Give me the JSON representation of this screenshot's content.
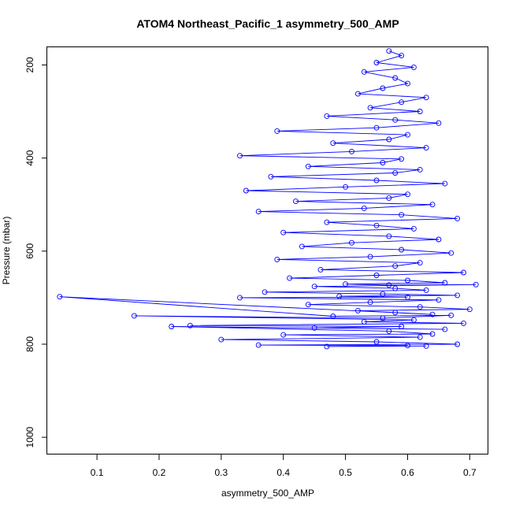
{
  "chart_data": {
    "type": "scatter",
    "title": "ATOM4 Northeast_Pacific_1 asymmetry_500_AMP",
    "xlabel": "asymmetry_500_AMP",
    "ylabel": "Pressure (mbar)",
    "xlim": [
      0.02,
      0.73
    ],
    "ylim": [
      1037,
      162
    ],
    "y_reversed": true,
    "x_ticks": [
      0.1,
      0.2,
      0.3,
      0.4,
      0.5,
      0.6,
      0.7
    ],
    "y_ticks": [
      200,
      400,
      600,
      800,
      1000
    ],
    "x_tick_labels": [
      "0.1",
      "0.2",
      "0.3",
      "0.4",
      "0.5",
      "0.6",
      "0.7"
    ],
    "y_tick_labels": [
      "200",
      "400",
      "600",
      "800",
      "1000"
    ],
    "marker": "open-circle",
    "connected_lines": true,
    "series_color": "#0000ff",
    "grid": false,
    "legend": "none",
    "series": [
      {
        "x": [
          0.57,
          0.59,
          0.55,
          0.61,
          0.53,
          0.58,
          0.6,
          0.56,
          0.52,
          0.63,
          0.59,
          0.54,
          0.62,
          0.47,
          0.58,
          0.65,
          0.55,
          0.39,
          0.6,
          0.57,
          0.48,
          0.63,
          0.51,
          0.33,
          0.59,
          0.56,
          0.44,
          0.62,
          0.58,
          0.38,
          0.55,
          0.66,
          0.5,
          0.34,
          0.6,
          0.57,
          0.42,
          0.64,
          0.53,
          0.36,
          0.59,
          0.68,
          0.47,
          0.55,
          0.61,
          0.4,
          0.57,
          0.65,
          0.51,
          0.43,
          0.59,
          0.67,
          0.54,
          0.39,
          0.62,
          0.58,
          0.46,
          0.69,
          0.55,
          0.41,
          0.6,
          0.66,
          0.5,
          0.57,
          0.71,
          0.45,
          0.58,
          0.63,
          0.37,
          0.56,
          0.68,
          0.49,
          0.6,
          0.33,
          0.65,
          0.54,
          0.44,
          0.62,
          0.7,
          0.52,
          0.58,
          0.64,
          0.04,
          0.48,
          0.67,
          0.56,
          0.16,
          0.61,
          0.53,
          0.69,
          0.25,
          0.59,
          0.45,
          0.66,
          0.22,
          0.57,
          0.64,
          0.4,
          0.62,
          0.3,
          0.55,
          0.68,
          0.36,
          0.6,
          0.47,
          0.63
        ],
        "y": [
          170,
          180,
          195,
          205,
          215,
          228,
          240,
          250,
          262,
          270,
          280,
          292,
          300,
          310,
          318,
          325,
          335,
          342,
          350,
          360,
          368,
          378,
          386,
          395,
          402,
          410,
          418,
          425,
          432,
          440,
          448,
          455,
          462,
          470,
          478,
          486,
          493,
          500,
          508,
          515,
          522,
          530,
          538,
          545,
          552,
          560,
          568,
          575,
          582,
          590,
          597,
          604,
          612,
          618,
          625,
          632,
          640,
          646,
          652,
          658,
          663,
          668,
          671,
          673,
          672,
          676,
          680,
          684,
          688,
          692,
          695,
          697,
          699,
          700,
          705,
          710,
          715,
          720,
          725,
          728,
          732,
          736,
          698,
          740,
          738,
          744,
          739,
          748,
          752,
          755,
          760,
          762,
          765,
          768,
          762,
          772,
          778,
          780,
          785,
          790,
          795,
          800,
          802,
          803,
          805,
          804
        ]
      }
    ]
  }
}
